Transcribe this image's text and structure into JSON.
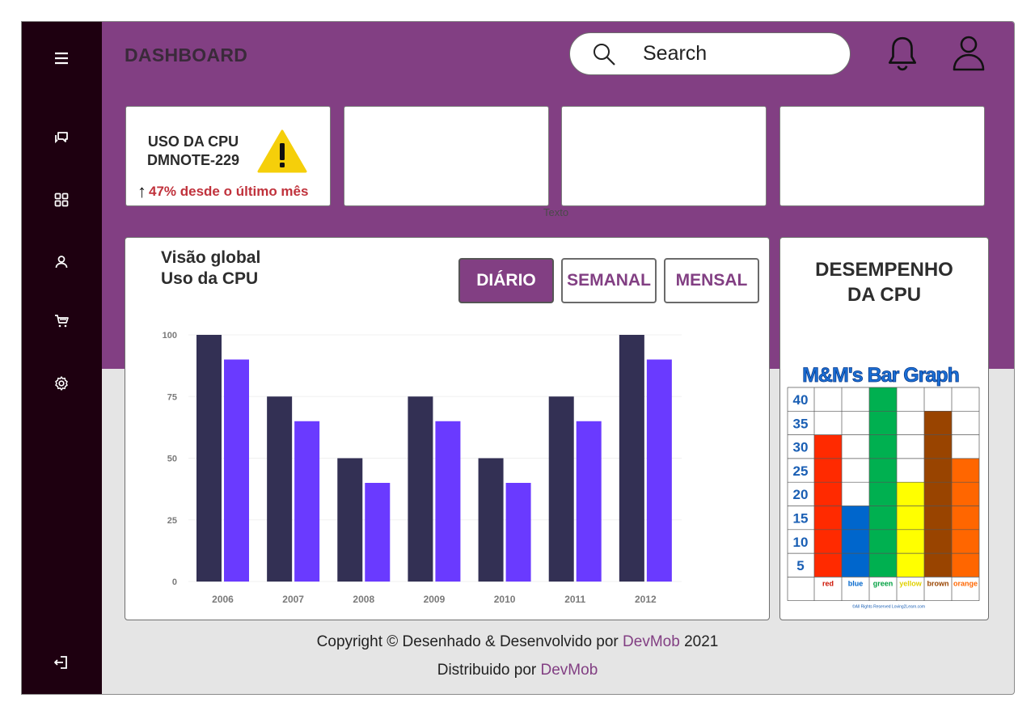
{
  "header": {
    "title": "DASHBOARD",
    "search_placeholder": "Search"
  },
  "sidebar": {
    "items": [
      {
        "icon": "menu-icon"
      },
      {
        "icon": "chat-icon"
      },
      {
        "icon": "grid-icon"
      },
      {
        "icon": "user-icon"
      },
      {
        "icon": "cart-icon"
      },
      {
        "icon": "gear-icon"
      },
      {
        "icon": "logout-icon"
      }
    ]
  },
  "stat_card": {
    "title_line1": "USO DA CPU",
    "title_line2": "DMNOTE-229",
    "arrow": "↑",
    "change_text": "47% desde o último mês",
    "warning_icon": "warning-icon"
  },
  "placeholder_label": "Texto",
  "overview": {
    "title_line1": "Visão global",
    "title_line2": "Uso da CPU",
    "tabs": [
      {
        "label": "DIÁRIO",
        "active": true
      },
      {
        "label": "SEMANAL",
        "active": false
      },
      {
        "label": "MENSAL",
        "active": false
      }
    ]
  },
  "chart_data": {
    "type": "bar",
    "categories": [
      "2006",
      "2007",
      "2008",
      "2009",
      "2010",
      "2011",
      "2012"
    ],
    "series": [
      {
        "values": [
          100,
          75,
          50,
          75,
          50,
          75,
          100
        ],
        "color": "#333054"
      },
      {
        "values": [
          90,
          65,
          40,
          65,
          40,
          65,
          90
        ],
        "color": "#6a3aff"
      }
    ],
    "yticks": [
      0,
      25,
      50,
      75,
      100
    ],
    "ylim": [
      0,
      100
    ],
    "grid": true
  },
  "performance": {
    "title_line1": "DESEMPENHO",
    "title_line2": "DA CPU",
    "graph": {
      "title": "M&M's Bar Graph",
      "yticks": [
        "40",
        "35",
        "30",
        "25",
        "20",
        "15",
        "10",
        "5"
      ],
      "colors": [
        "red",
        "blue",
        "green",
        "yellow",
        "brown",
        "orange"
      ],
      "values": [
        30,
        15,
        40,
        20,
        35,
        25
      ],
      "fills": [
        "#ff2a00",
        "#0066cc",
        "#00b050",
        "#ffff00",
        "#994400",
        "#ff6600"
      ],
      "label_colors": [
        "#cc1100",
        "#0066cc",
        "#00a040",
        "#e0d000",
        "#994400",
        "#ff6600"
      ],
      "footnote": "©All Rights Reserved Loving2Learn.com"
    }
  },
  "footer": {
    "line1_prefix": "Copyright © Desenhado & Desenvolvido por ",
    "line1_brand": "DevMob",
    "line1_suffix": " 2021",
    "line2_prefix": "Distribuido por ",
    "line2_brand": "DevMob"
  }
}
